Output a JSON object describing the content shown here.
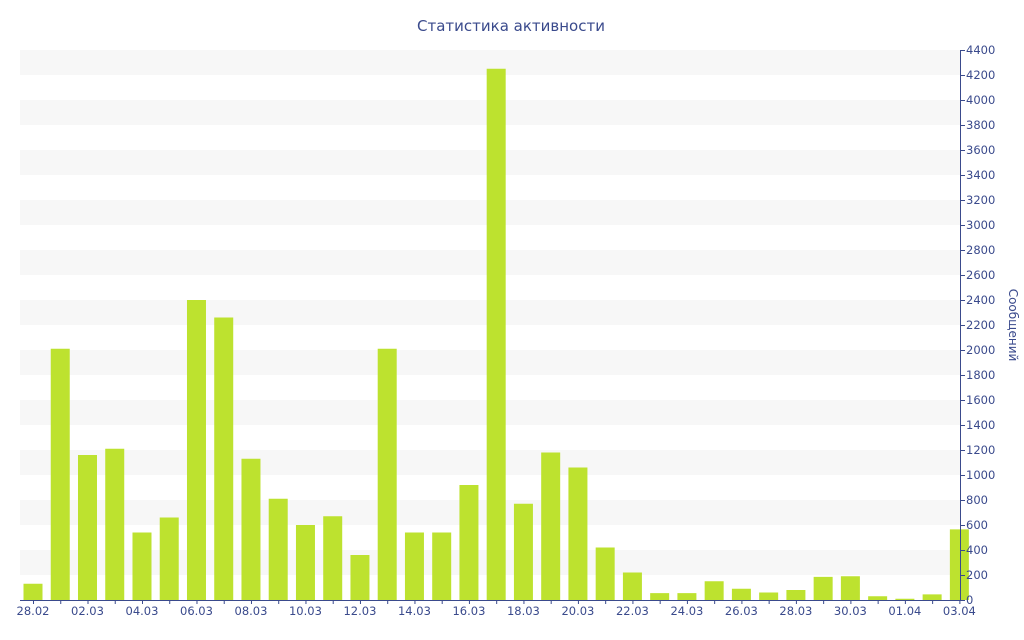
{
  "chart_data": {
    "type": "bar",
    "title": "Статистика активности",
    "ylabel": "Сообщений",
    "xlabel": "",
    "ylim": [
      0,
      4400
    ],
    "y_ticks": [
      0,
      200,
      400,
      600,
      800,
      1000,
      1200,
      1400,
      1600,
      1800,
      2000,
      2200,
      2400,
      2600,
      2800,
      3000,
      3200,
      3400,
      3600,
      3800,
      4000,
      4200,
      4400
    ],
    "y_axis_position": "right",
    "grid": "alternating horizontal bands",
    "x_tick_labels": [
      "28.02",
      "02.03",
      "04.03",
      "06.03",
      "08.03",
      "10.03",
      "12.03",
      "14.03",
      "16.03",
      "18.03",
      "20.03",
      "22.03",
      "24.03",
      "26.03",
      "28.03",
      "30.03",
      "01.04",
      "03.04"
    ],
    "categories": [
      "28.02",
      "01.03",
      "02.03",
      "03.03",
      "04.03",
      "05.03",
      "06.03",
      "07.03",
      "08.03",
      "09.03",
      "10.03",
      "11.03",
      "12.03",
      "13.03",
      "14.03",
      "15.03",
      "16.03",
      "17.03",
      "18.03",
      "19.03",
      "20.03",
      "21.03",
      "22.03",
      "23.03",
      "24.03",
      "25.03",
      "26.03",
      "27.03",
      "28.03",
      "29.03",
      "30.03",
      "31.03",
      "01.04",
      "02.04",
      "03.04"
    ],
    "values": [
      130,
      2010,
      1160,
      1210,
      540,
      660,
      2400,
      2260,
      1130,
      810,
      600,
      670,
      360,
      2010,
      540,
      540,
      920,
      4250,
      770,
      1180,
      1060,
      420,
      220,
      55,
      55,
      150,
      90,
      60,
      80,
      185,
      190,
      30,
      10,
      45,
      565
    ],
    "colors": {
      "bar": "#bde22f",
      "band": "#f7f7f7",
      "axis": "#3a4a8c",
      "text": "#3a4a8c"
    }
  }
}
